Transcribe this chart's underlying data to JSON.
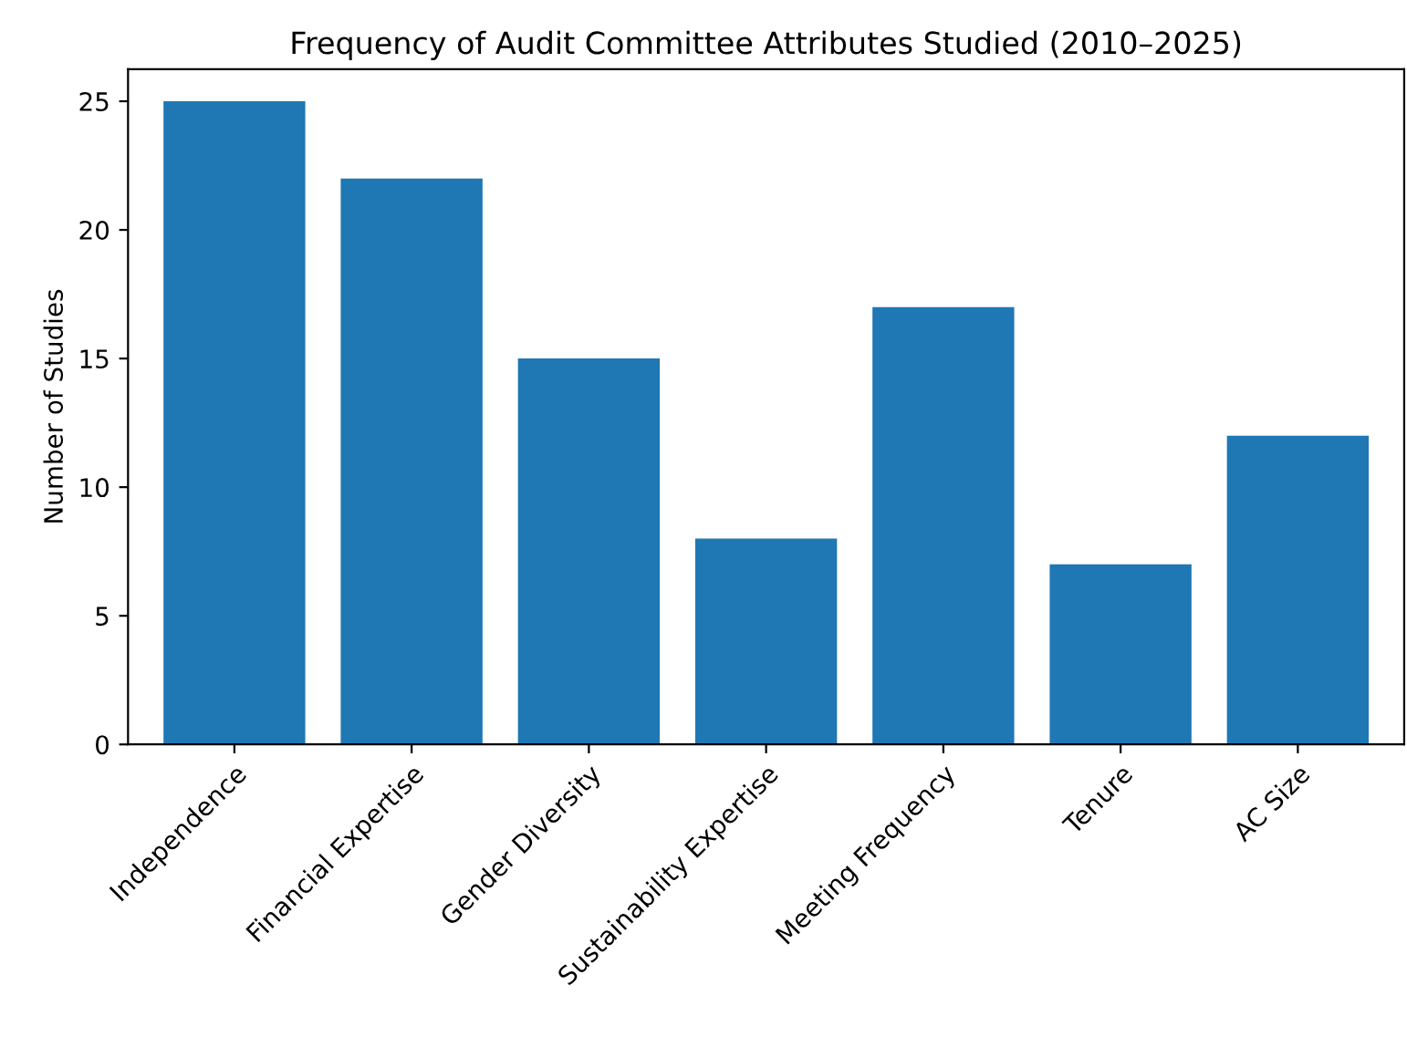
{
  "chart_data": {
    "type": "bar",
    "title": "Frequency of Audit Committee Attributes Studied (2010–2025)",
    "ylabel": "Number of Studies",
    "categories": [
      "Independence",
      "Financial Expertise",
      "Gender Diversity",
      "Sustainability Expertise",
      "Meeting Frequency",
      "Tenure",
      "AC Size"
    ],
    "values": [
      25,
      22,
      15,
      8,
      17,
      7,
      12
    ],
    "color": "#1f77b4",
    "ylim": [
      0,
      26.25
    ],
    "yticks": [
      0,
      5,
      10,
      15,
      20,
      25
    ],
    "grid": false
  }
}
